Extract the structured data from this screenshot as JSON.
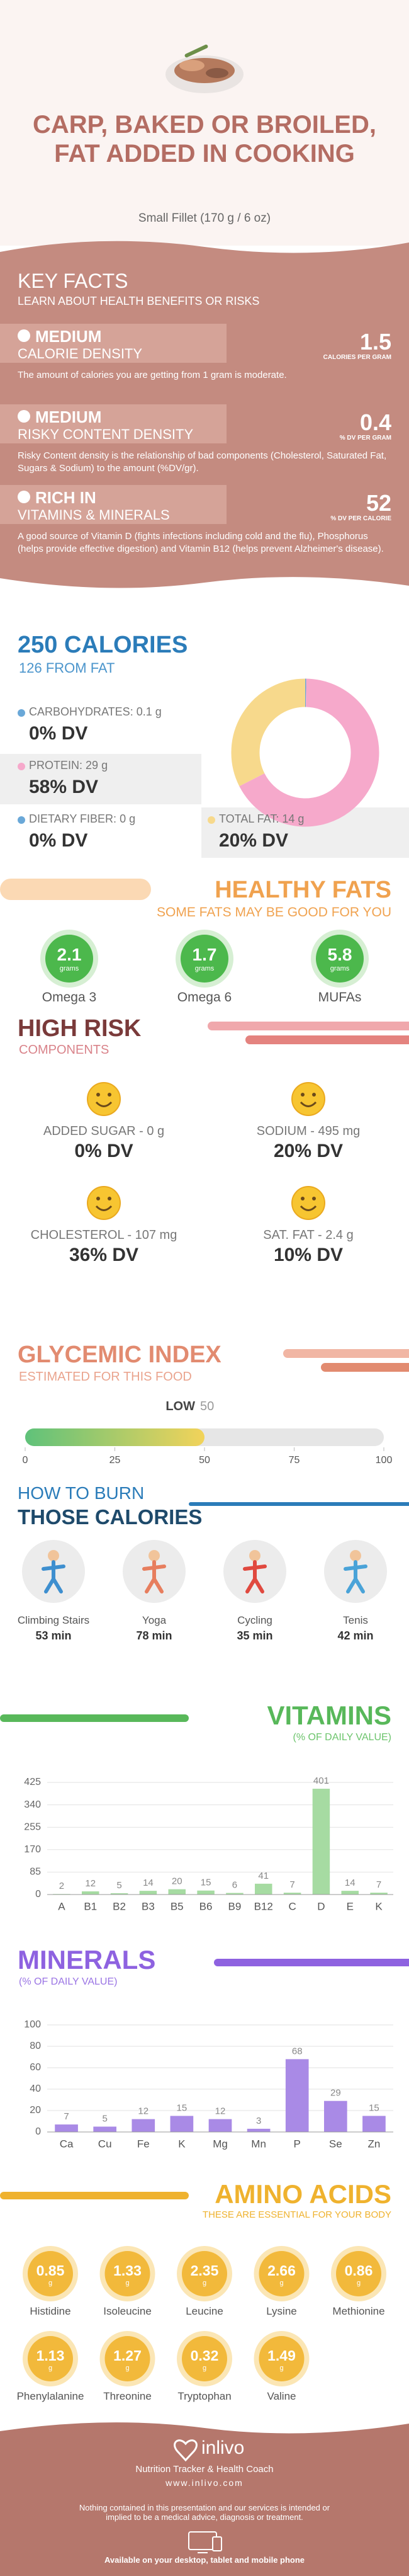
{
  "header": {
    "title": "CARP, BAKED OR BROILED, FAT ADDED IN COOKING",
    "serving": "Small Fillet (170 g / 6 oz)"
  },
  "key_facts": {
    "title": "KEY FACTS",
    "subtitle": "LEARN ABOUT HEALTH BENEFITS OR RISKS",
    "items": [
      {
        "level": "MEDIUM",
        "name": "CALORIE DENSITY",
        "value": 1.5,
        "unit": "CALORIES PER GRAM",
        "description": "The amount of calories you are getting from 1 gram is moderate."
      },
      {
        "level": "MEDIUM",
        "name": "RISKY CONTENT DENSITY",
        "value": 0.4,
        "unit": "% DV PER GRAM",
        "description": "Risky Content density is the relationship of bad components (Cholesterol, Saturated Fat, Sugars & Sodium) to the amount (%DV/gr)."
      },
      {
        "level": "RICH IN",
        "name": "VITAMINS & MINERALS",
        "value": 52,
        "unit": "% DV PER CALORIE",
        "description": "A good source of Vitamin D (fights infections including cold and the flu), Phosphorus (helps provide effective digestion) and Vitamin B12 (helps prevent Alzheimer's disease)."
      }
    ]
  },
  "calories": {
    "title": "250 CALORIES",
    "subtitle": "126 FROM FAT",
    "nutrients": [
      {
        "name": "CARBOHYDRATES:",
        "amount": 0.1,
        "unit": "g",
        "dv": "0% DV",
        "color": "#6aa8d8"
      },
      {
        "name": "PROTEIN:",
        "amount": 29,
        "unit": "g",
        "dv": "58% DV",
        "color": "#f6a9cb"
      },
      {
        "name": "DIETARY FIBER:",
        "amount": 0,
        "unit": "g",
        "dv": "0% DV",
        "color": "#6aa8d8"
      },
      {
        "name": "TOTAL FAT:",
        "amount": 14,
        "unit": "g",
        "dv": "20% DV",
        "color": "#f7d98c"
      }
    ]
  },
  "healthy_fats": {
    "title": "HEALTHY FATS",
    "subtitle": "SOME FATS MAY BE GOOD FOR YOU",
    "unit": "grams",
    "items": [
      {
        "name": "Omega 3",
        "value": 2.1
      },
      {
        "name": "Omega 6",
        "value": 1.7
      },
      {
        "name": "MUFAs",
        "value": 5.8
      }
    ]
  },
  "high_risk": {
    "title": "HIGH RISK",
    "subtitle": "COMPONENTS",
    "items": [
      {
        "label": "ADDED SUGAR - 0 g",
        "dv": "0% DV"
      },
      {
        "label": "SODIUM - 495 mg",
        "dv": "20% DV"
      },
      {
        "label": "CHOLESTEROL - 107 mg",
        "dv": "36% DV"
      },
      {
        "label": "SAT. FAT - 2.4 g",
        "dv": "10% DV"
      }
    ]
  },
  "glycemic": {
    "title": "GLYCEMIC INDEX",
    "subtitle": "ESTIMATED FOR THIS FOOD",
    "level": "LOW",
    "value": 50,
    "range": [
      0,
      100
    ],
    "ticks": [
      0,
      25,
      50,
      75,
      100
    ]
  },
  "burn": {
    "title_1": "HOW TO BURN",
    "title_2": "THOSE CALORIES",
    "unit": "min",
    "activities": [
      {
        "name": "Climbing Stairs",
        "minutes": 53
      },
      {
        "name": "Yoga",
        "minutes": 78
      },
      {
        "name": "Cycling",
        "minutes": 35
      },
      {
        "name": "Tenis",
        "minutes": 42
      }
    ]
  },
  "chart_data": [
    {
      "type": "bar",
      "title": "VITAMINS",
      "subtitle": "(% OF DAILY VALUE)",
      "categories": [
        "A",
        "B1",
        "B2",
        "B3",
        "B5",
        "B6",
        "B9",
        "B12",
        "C",
        "D",
        "E",
        "K"
      ],
      "values": [
        2,
        12,
        5,
        14,
        20,
        15,
        6,
        41,
        7,
        401,
        14,
        7
      ],
      "color": "#a6dba2",
      "ylim": [
        0,
        425
      ],
      "yticks": [
        0,
        85,
        170,
        255,
        340,
        425
      ],
      "grid": true
    },
    {
      "type": "bar",
      "title": "MINERALS",
      "subtitle": "(% OF DAILY VALUE)",
      "categories": [
        "Ca",
        "Cu",
        "Fe",
        "K",
        "Mg",
        "Mn",
        "P",
        "Se",
        "Zn"
      ],
      "values": [
        7,
        5,
        12,
        15,
        12,
        3,
        68,
        29,
        15
      ],
      "color": "#a98ae6",
      "ylim": [
        0,
        100
      ],
      "yticks": [
        0,
        20,
        40,
        60,
        80,
        100
      ],
      "grid": true
    }
  ],
  "amino_acids": {
    "title": "AMINO ACIDS",
    "subtitle": "THESE ARE ESSENTIAL FOR YOUR BODY",
    "unit": "g",
    "items": [
      {
        "name": "Histidine",
        "value": 0.85
      },
      {
        "name": "Isoleucine",
        "value": 1.33
      },
      {
        "name": "Leucine",
        "value": 2.35
      },
      {
        "name": "Lysine",
        "value": 2.66
      },
      {
        "name": "Methionine",
        "value": 0.86
      },
      {
        "name": "Phenylalanine",
        "value": 1.13
      },
      {
        "name": "Threonine",
        "value": 1.27
      },
      {
        "name": "Tryptophan",
        "value": 0.32
      },
      {
        "name": "Valine",
        "value": 1.49
      }
    ]
  },
  "footer": {
    "brand": "inlivo",
    "tagline": "Nutrition Tracker & Health Coach",
    "url": "www.inlivo.com",
    "disclaimer": "Nothing contained in this presentation and our services is intended or implied to be a medical advice, diagnosis or treatment.",
    "availability": "Available on your desktop, tablet and mobile phone"
  }
}
